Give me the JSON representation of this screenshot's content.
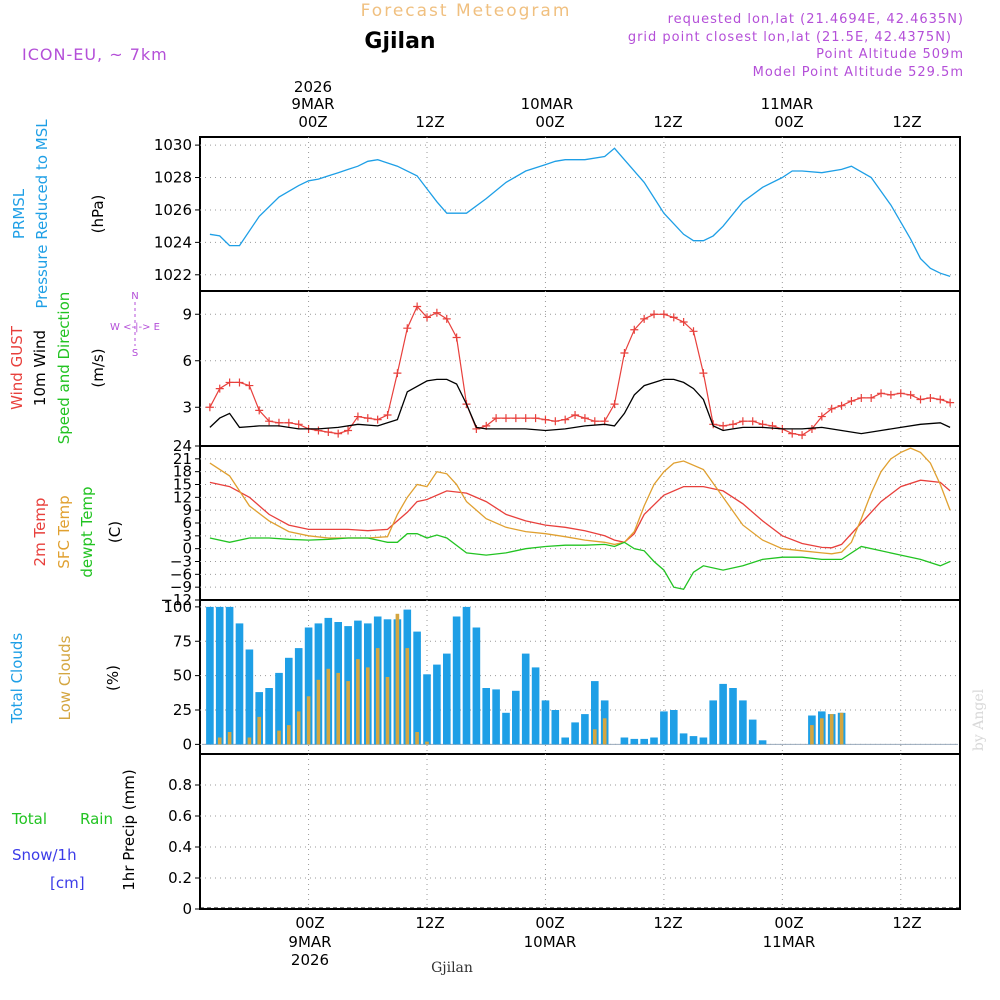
{
  "header": {
    "title": "Forecast Meteogram",
    "location": "Gjilan",
    "model": "ICON-EU, ~ 7km",
    "requested": "requested lon,lat (21.4694E, 42.4635N)",
    "grid_point": "grid point closest lon,lat (21.5E, 42.4375N)",
    "point_altitude": "Point Altitude 509m",
    "model_altitude": "Model Point Altitude 529.5m"
  },
  "footer": {
    "location": "Gjilan",
    "watermark": "by Angel"
  },
  "time_axis": {
    "year": "2026",
    "day_labels": [
      "9MAR",
      "10MAR",
      "11MAR"
    ],
    "hour_labels": [
      "00Z",
      "12Z",
      "00Z",
      "12Z",
      "00Z",
      "12Z"
    ],
    "hour_values": [
      0,
      12,
      24,
      36,
      48,
      60
    ],
    "range_hours": [
      -11,
      66
    ]
  },
  "panel_labels": {
    "pressure": [
      "PRMSL",
      "Pressure Reduced to MSL",
      "(hPa)"
    ],
    "wind": [
      "Wind GUST",
      "10m Wind",
      "Speed and Direction",
      "(m/s)"
    ],
    "compass": [
      "N",
      "W <-|-> E",
      "S"
    ],
    "temp": [
      "2m Temp",
      "SFC Temp",
      "dewpt Temp",
      "(C)"
    ],
    "clouds": [
      "Total Clouds",
      "Low Clouds",
      "(%)"
    ],
    "precip": [
      "Total",
      "Rain",
      "Snow/1h",
      "[cm]",
      "1hr Precip (mm)"
    ]
  },
  "colors": {
    "pressure": "#1e9fe6",
    "gust": "#e8403c",
    "wind": "#000000",
    "sfc_temp": "#e0a030",
    "dewpt": "#22c322",
    "total_clouds": "#1e9fe6",
    "low_clouds": "#d4a640",
    "title": "#f0c080",
    "info": "#b44fd8",
    "snow": "#3b3be8"
  },
  "chart_data": [
    {
      "type": "line",
      "title": "PRMSL Pressure Reduced to MSL",
      "ylabel": "(hPa)",
      "ylim": [
        1021,
        1030.5
      ],
      "yticks": [
        1022,
        1024,
        1026,
        1028,
        1030
      ],
      "series": [
        {
          "name": "PRMSL",
          "x": [
            -10,
            -9,
            -8,
            -7,
            -5,
            -3,
            -1,
            0,
            1,
            2,
            3,
            4,
            5,
            6,
            7,
            9,
            11,
            12,
            13,
            14,
            16,
            18,
            20,
            22,
            24,
            25,
            26,
            28,
            30,
            31,
            32,
            34,
            36,
            38,
            39,
            40,
            41,
            42,
            44,
            46,
            48,
            49,
            50,
            52,
            54,
            55,
            57,
            59,
            61,
            62,
            63,
            64,
            65
          ],
          "values": [
            1024.5,
            1024.4,
            1023.8,
            1023.8,
            1025.6,
            1026.8,
            1027.5,
            1027.8,
            1027.9,
            1028.1,
            1028.3,
            1028.5,
            1028.7,
            1029.0,
            1029.1,
            1028.7,
            1028.1,
            1027.3,
            1026.5,
            1025.8,
            1025.8,
            1026.7,
            1027.7,
            1028.4,
            1028.8,
            1029.0,
            1029.1,
            1029.1,
            1029.3,
            1029.8,
            1029.1,
            1027.7,
            1025.8,
            1024.5,
            1024.1,
            1024.1,
            1024.4,
            1025.0,
            1026.5,
            1027.4,
            1028.0,
            1028.4,
            1028.4,
            1028.3,
            1028.5,
            1028.7,
            1028.0,
            1026.3,
            1024.2,
            1023.0,
            1022.4,
            1022.1,
            1021.9
          ]
        }
      ]
    },
    {
      "type": "line",
      "title": "Wind GUST / 10m Wind Speed and Direction",
      "ylabel": "(m/s)",
      "ylim": [
        0.5,
        10.5
      ],
      "yticks": [
        3,
        6,
        9
      ],
      "series": [
        {
          "name": "Wind GUST",
          "x": [
            -10,
            -9,
            -8,
            -7,
            -6,
            -5,
            -4,
            -3,
            -2,
            -1,
            0,
            1,
            2,
            3,
            4,
            5,
            6,
            7,
            8,
            9,
            10,
            11,
            12,
            13,
            14,
            15,
            16,
            17,
            18,
            19,
            20,
            21,
            22,
            23,
            24,
            25,
            26,
            27,
            28,
            29,
            30,
            31,
            32,
            33,
            34,
            35,
            36,
            37,
            38,
            39,
            40,
            41,
            42,
            43,
            44,
            45,
            46,
            47,
            48,
            49,
            50,
            51,
            52,
            53,
            54,
            55,
            56,
            57,
            58,
            59,
            60,
            61,
            62,
            63,
            64,
            65
          ],
          "values": [
            3.0,
            4.2,
            4.6,
            4.6,
            4.4,
            2.8,
            2.1,
            2.0,
            2.0,
            1.9,
            1.6,
            1.5,
            1.4,
            1.3,
            1.5,
            2.4,
            2.3,
            2.2,
            2.5,
            5.2,
            8.1,
            9.5,
            8.8,
            9.1,
            8.7,
            7.5,
            3.2,
            1.6,
            1.8,
            2.3,
            2.3,
            2.3,
            2.3,
            2.3,
            2.2,
            2.1,
            2.2,
            2.5,
            2.3,
            2.1,
            2.1,
            3.2,
            6.5,
            8.0,
            8.7,
            9.0,
            9.0,
            8.8,
            8.5,
            7.9,
            5.2,
            1.9,
            1.8,
            1.9,
            2.1,
            2.1,
            1.9,
            1.8,
            1.6,
            1.3,
            1.2,
            1.6,
            2.4,
            2.9,
            3.1,
            3.4,
            3.6,
            3.6,
            3.9,
            3.8,
            3.9,
            3.8,
            3.5,
            3.6,
            3.5,
            3.3
          ]
        },
        {
          "name": "10m Wind",
          "x": [
            -10,
            -9,
            -8,
            -7,
            -5,
            -3,
            -1,
            1,
            3,
            5,
            7,
            9,
            10,
            12,
            13,
            14,
            15,
            16,
            17,
            18,
            20,
            22,
            24,
            26,
            28,
            30,
            31,
            32,
            33,
            34,
            36,
            37,
            38,
            39,
            40,
            41,
            42,
            43,
            44,
            46,
            48,
            50,
            52,
            54,
            56,
            58,
            60,
            62,
            64,
            65
          ],
          "values": [
            1.7,
            2.3,
            2.6,
            1.7,
            1.8,
            1.8,
            1.6,
            1.6,
            1.7,
            1.9,
            1.8,
            2.2,
            4.0,
            4.7,
            4.8,
            4.8,
            4.5,
            3.2,
            1.7,
            1.6,
            1.6,
            1.6,
            1.5,
            1.6,
            1.8,
            1.9,
            1.8,
            2.6,
            3.8,
            4.4,
            4.8,
            4.8,
            4.6,
            4.2,
            3.5,
            1.8,
            1.5,
            1.6,
            1.7,
            1.7,
            1.6,
            1.6,
            1.7,
            1.5,
            1.3,
            1.5,
            1.7,
            1.9,
            2.0,
            1.7
          ]
        }
      ]
    },
    {
      "type": "line",
      "title": "2m Temp / SFC Temp / dewpt Temp",
      "ylabel": "(C)",
      "ylim": [
        -12,
        24
      ],
      "yticks": [
        24,
        21,
        18,
        15,
        12,
        9,
        6,
        3,
        0,
        -3,
        -6,
        -9,
        -12
      ],
      "series": [
        {
          "name": "2m Temp",
          "x": [
            -10,
            -8,
            -6,
            -4,
            -2,
            0,
            2,
            4,
            6,
            8,
            10,
            11,
            12,
            14,
            16,
            18,
            20,
            22,
            24,
            26,
            28,
            30,
            31,
            32,
            33,
            34,
            36,
            38,
            40,
            42,
            44,
            46,
            48,
            50,
            52,
            53,
            54,
            56,
            58,
            60,
            62,
            64,
            65
          ],
          "values": [
            15.5,
            14.5,
            12,
            8,
            5.5,
            4.5,
            4.5,
            4.5,
            4.2,
            4.5,
            8.5,
            11,
            11.5,
            13.5,
            13,
            11,
            8,
            6.5,
            5.5,
            5,
            4.2,
            3,
            2,
            1.5,
            3.5,
            8,
            12.5,
            14.5,
            14.5,
            13.5,
            10.5,
            6.5,
            3,
            1.2,
            0.3,
            0.2,
            1,
            6,
            11,
            14.5,
            16,
            15.5,
            13.5
          ]
        },
        {
          "name": "SFC Temp",
          "x": [
            -10,
            -8,
            -6,
            -4,
            -2,
            0,
            2,
            4,
            6,
            8,
            9,
            10,
            11,
            12,
            13,
            14,
            15,
            16,
            18,
            20,
            22,
            24,
            26,
            28,
            30,
            31,
            32,
            33,
            34,
            35,
            36,
            37,
            38,
            40,
            42,
            44,
            46,
            48,
            50,
            52,
            53,
            54,
            55,
            56,
            57,
            58,
            59,
            60,
            61,
            62,
            63,
            64,
            65
          ],
          "values": [
            20,
            17,
            10,
            6.5,
            4,
            3,
            2.5,
            2.5,
            2.5,
            2.8,
            8,
            12,
            15,
            14.5,
            18,
            17.5,
            15,
            11,
            7,
            5,
            4,
            3.5,
            2.8,
            2,
            1.5,
            1,
            1.5,
            4,
            10,
            15,
            18,
            20,
            20.5,
            18.5,
            12,
            5.5,
            2,
            0,
            -0.5,
            -1,
            -1.2,
            -0.8,
            1.5,
            7,
            13,
            18,
            21,
            22.5,
            23.5,
            22.5,
            20,
            15,
            9
          ]
        },
        {
          "name": "dewpt Temp",
          "x": [
            -10,
            -8,
            -6,
            -4,
            -2,
            0,
            2,
            4,
            6,
            8,
            9,
            10,
            11,
            12,
            13,
            14,
            16,
            18,
            20,
            22,
            24,
            26,
            28,
            30,
            31,
            32,
            33,
            34,
            35,
            36,
            37,
            38,
            39,
            40,
            42,
            44,
            46,
            48,
            50,
            52,
            54,
            56,
            58,
            60,
            62,
            64,
            65
          ],
          "values": [
            2.5,
            1.5,
            2.5,
            2.5,
            2.2,
            2,
            2.2,
            2.5,
            2.5,
            1.5,
            1.5,
            3.5,
            3.5,
            2.5,
            3.2,
            2.5,
            -1,
            -1.5,
            -1,
            0,
            0.5,
            0.8,
            0.8,
            1,
            0.5,
            1.5,
            0,
            -0.5,
            -3,
            -5,
            -9,
            -9.5,
            -5.5,
            -4,
            -5,
            -4,
            -2.5,
            -2,
            -2,
            -2.5,
            -2.5,
            0.5,
            -0.5,
            -1.5,
            -2.5,
            -4,
            -3
          ]
        }
      ]
    },
    {
      "type": "bar",
      "title": "Total Clouds / Low Clouds",
      "ylabel": "(%)",
      "ylim": [
        -7,
        105
      ],
      "yticks": [
        0,
        25,
        50,
        75,
        100
      ],
      "series": [
        {
          "name": "Total Clouds",
          "x": [
            -10,
            -9,
            -8,
            -7,
            -6,
            -5,
            -4,
            -3,
            -2,
            -1,
            0,
            1,
            2,
            3,
            4,
            5,
            6,
            7,
            8,
            9,
            10,
            11,
            12,
            13,
            14,
            15,
            16,
            17,
            18,
            19,
            20,
            21,
            22,
            23,
            24,
            25,
            26,
            27,
            28,
            29,
            30,
            31,
            32,
            33,
            34,
            35,
            36,
            37,
            38,
            39,
            40,
            41,
            42,
            43,
            44,
            45,
            46,
            47,
            48,
            49,
            50,
            51,
            52,
            53,
            54,
            55,
            56,
            57,
            58,
            59,
            60,
            61,
            62,
            63,
            64,
            65
          ],
          "values": [
            100,
            100,
            100,
            88,
            69,
            38,
            41,
            52,
            63,
            70,
            85,
            88,
            92,
            89,
            86,
            90,
            88,
            93,
            91,
            91,
            98,
            82,
            51,
            58,
            66,
            93,
            100,
            85,
            41,
            40,
            23,
            39,
            66,
            56,
            32,
            25,
            5,
            16,
            22,
            46,
            32,
            0,
            5,
            4,
            4,
            5,
            24,
            25,
            8,
            6,
            5,
            32,
            44,
            41,
            32,
            18,
            3,
            0,
            0,
            0,
            0,
            21,
            24,
            22,
            23,
            0,
            0,
            0,
            0,
            0,
            0,
            0,
            0,
            0,
            0,
            0
          ]
        },
        {
          "name": "Low Clouds",
          "x": [
            -10,
            -9,
            -8,
            -7,
            -6,
            -5,
            -4,
            -3,
            -2,
            -1,
            0,
            1,
            2,
            3,
            4,
            5,
            6,
            7,
            8,
            9,
            10,
            11,
            12,
            13,
            14,
            15,
            16,
            17,
            18,
            19,
            20,
            21,
            22,
            23,
            24,
            25,
            26,
            27,
            28,
            29,
            30,
            31,
            32,
            33,
            34,
            35,
            36,
            37,
            38,
            39,
            40,
            41,
            42,
            43,
            44,
            45,
            46,
            47,
            48,
            49,
            50,
            51,
            52,
            53,
            54,
            55,
            56,
            57,
            58,
            59,
            60,
            61,
            62,
            63,
            64,
            65
          ],
          "values": [
            0,
            5,
            9,
            0,
            5,
            20,
            0,
            10,
            14,
            24,
            35,
            47,
            55,
            52,
            46,
            62,
            56,
            70,
            49,
            95,
            70,
            9,
            2,
            0,
            0,
            0,
            0,
            0,
            0,
            0,
            0,
            0,
            0,
            0,
            0,
            0,
            0,
            0,
            0,
            11,
            19,
            0,
            0,
            0,
            0,
            0,
            0,
            0,
            0,
            0,
            0,
            0,
            0,
            0,
            0,
            0,
            0,
            0,
            0,
            0,
            0,
            14,
            19,
            22,
            23,
            0,
            0,
            0,
            0,
            0,
            0,
            0,
            0,
            0,
            0,
            0
          ]
        }
      ]
    },
    {
      "type": "line",
      "title": "1hr Precip (mm)",
      "ylabel": "1hr Precip (mm)",
      "ylim": [
        0,
        1
      ],
      "yticks": [
        0,
        0.2,
        0.4,
        0.6,
        0.8
      ],
      "series": [
        {
          "name": "Total Rain",
          "x": [
            -11,
            66
          ],
          "values": [
            0,
            0
          ]
        },
        {
          "name": "Snow/1h",
          "x": [
            -11,
            66
          ],
          "values": [
            0,
            0
          ]
        }
      ]
    }
  ]
}
